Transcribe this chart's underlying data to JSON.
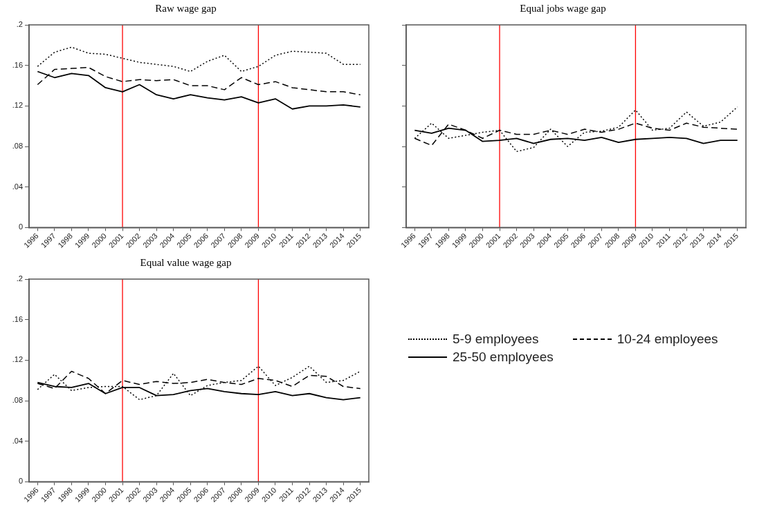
{
  "chart_data": [
    {
      "type": "line",
      "title": "Raw wage gap",
      "categories": [
        "1996",
        "1997",
        "1998",
        "1999",
        "2000",
        "2001",
        "2002",
        "2003",
        "2004",
        "2005",
        "2006",
        "2007",
        "2008",
        "2009",
        "2010",
        "2011",
        "2012",
        "2013",
        "2014",
        "2015"
      ],
      "series": [
        {
          "color": "#000000",
          "line_style": "dotted",
          "values": [
            0.159,
            0.173,
            0.178,
            0.172,
            0.171,
            0.167,
            0.163,
            0.161,
            0.159,
            0.154,
            0.164,
            0.17,
            0.154,
            0.159,
            0.17,
            0.174,
            0.173,
            0.172,
            0.161,
            0.161
          ]
        },
        {
          "color": "#000000",
          "line_style": "dashed",
          "values": [
            0.141,
            0.156,
            0.157,
            0.158,
            0.149,
            0.144,
            0.146,
            0.145,
            0.146,
            0.14,
            0.14,
            0.136,
            0.148,
            0.141,
            0.144,
            0.138,
            0.136,
            0.134,
            0.134,
            0.131
          ]
        },
        {
          "color": "#000000",
          "line_style": "solid",
          "values": [
            0.154,
            0.148,
            0.152,
            0.15,
            0.138,
            0.134,
            0.141,
            0.131,
            0.127,
            0.131,
            0.128,
            0.126,
            0.129,
            0.123,
            0.127,
            0.117,
            0.12,
            0.12,
            0.121,
            0.119
          ]
        }
      ],
      "ylim": [
        0,
        0.2
      ],
      "yticks": [
        {
          "value": 0,
          "label": "0"
        },
        {
          "value": 0.04,
          "label": ".04"
        },
        {
          "value": 0.08,
          "label": ".08"
        },
        {
          "value": 0.12,
          "label": ".12"
        },
        {
          "value": 0.16,
          "label": ".16"
        },
        {
          "value": 0.2,
          "label": ".2"
        }
      ],
      "ref_lines": [
        {
          "axis": "x",
          "value": "2001",
          "color": "#ff0000"
        },
        {
          "axis": "x",
          "value": "2009",
          "color": "#ff0000"
        }
      ],
      "marker": "none"
    },
    {
      "type": "line",
      "title": "Equal jobs wage gap",
      "categories": [
        "1996",
        "1997",
        "1998",
        "1999",
        "2000",
        "2001",
        "2002",
        "2003",
        "2004",
        "2005",
        "2006",
        "2007",
        "2008",
        "2009",
        "2010",
        "2011",
        "2012",
        "2013",
        "2014",
        "2015"
      ],
      "series": [
        {
          "color": "#000000",
          "line_style": "dotted",
          "values": [
            0.088,
            0.103,
            0.088,
            0.091,
            0.094,
            0.096,
            0.075,
            0.079,
            0.097,
            0.08,
            0.094,
            0.095,
            0.099,
            0.116,
            0.096,
            0.098,
            0.114,
            0.1,
            0.104,
            0.119
          ]
        },
        {
          "color": "#000000",
          "line_style": "dashed",
          "values": [
            0.088,
            0.081,
            0.102,
            0.096,
            0.088,
            0.096,
            0.092,
            0.092,
            0.096,
            0.092,
            0.097,
            0.094,
            0.097,
            0.103,
            0.098,
            0.096,
            0.103,
            0.099,
            0.098,
            0.097
          ]
        },
        {
          "color": "#000000",
          "line_style": "solid",
          "values": [
            0.096,
            0.093,
            0.098,
            0.096,
            0.085,
            0.086,
            0.088,
            0.083,
            0.087,
            0.088,
            0.086,
            0.089,
            0.084,
            0.087,
            0.088,
            0.089,
            0.088,
            0.083,
            0.086,
            0.086
          ]
        }
      ],
      "ylim": [
        0,
        0.2
      ],
      "yticks": [
        {
          "value": 0,
          "label": null
        },
        {
          "value": 0.04,
          "label": null
        },
        {
          "value": 0.08,
          "label": null
        },
        {
          "value": 0.12,
          "label": null
        },
        {
          "value": 0.16,
          "label": null
        },
        {
          "value": 0.2,
          "label": null
        }
      ],
      "tick_labels": "x",
      "ref_lines": [
        {
          "axis": "x",
          "value": "2001",
          "color": "#ff0000"
        },
        {
          "axis": "x",
          "value": "2009",
          "color": "#ff0000"
        }
      ],
      "marker": "none"
    },
    {
      "type": "line",
      "title": "Equal value wage gap",
      "categories": [
        "1996",
        "1997",
        "1998",
        "1999",
        "2000",
        "2001",
        "2002",
        "2003",
        "2004",
        "2005",
        "2006",
        "2007",
        "2008",
        "2009",
        "2010",
        "2011",
        "2012",
        "2013",
        "2014",
        "2015"
      ],
      "series": [
        {
          "name": "5-9 employees",
          "color": "#000000",
          "line_style": "dotted",
          "values": [
            0.091,
            0.106,
            0.09,
            0.093,
            0.094,
            0.094,
            0.081,
            0.085,
            0.107,
            0.085,
            0.095,
            0.098,
            0.1,
            0.114,
            0.095,
            0.103,
            0.114,
            0.098,
            0.1,
            0.109
          ]
        },
        {
          "name": "10-24 employees",
          "color": "#000000",
          "line_style": "dashed",
          "values": [
            0.097,
            0.092,
            0.109,
            0.102,
            0.087,
            0.1,
            0.096,
            0.099,
            0.097,
            0.098,
            0.101,
            0.098,
            0.096,
            0.102,
            0.1,
            0.094,
            0.105,
            0.104,
            0.094,
            0.092
          ]
        },
        {
          "name": "25-50 employees",
          "color": "#000000",
          "line_style": "solid",
          "values": [
            0.098,
            0.094,
            0.093,
            0.097,
            0.087,
            0.093,
            0.093,
            0.085,
            0.086,
            0.09,
            0.092,
            0.089,
            0.087,
            0.086,
            0.089,
            0.085,
            0.087,
            0.083,
            0.081,
            0.083
          ]
        }
      ],
      "ylim": [
        0,
        0.2
      ],
      "yticks": [
        {
          "value": 0,
          "label": "0"
        },
        {
          "value": 0.04,
          "label": ".04"
        },
        {
          "value": 0.08,
          "label": ".08"
        },
        {
          "value": 0.12,
          "label": ".12"
        },
        {
          "value": 0.16,
          "label": ".16"
        },
        {
          "value": 0.2,
          "label": ".2"
        }
      ],
      "ref_lines": [
        {
          "axis": "x",
          "value": "2001",
          "color": "#ff0000"
        },
        {
          "axis": "x",
          "value": "2009",
          "color": "#ff0000"
        }
      ],
      "marker": "none",
      "legend": "right"
    }
  ]
}
